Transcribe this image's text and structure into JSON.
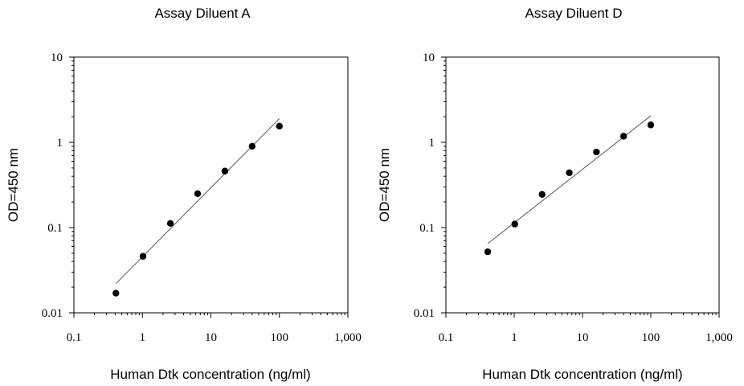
{
  "chart_data": [
    {
      "type": "scatter",
      "title": "Assay Diluent A",
      "xlabel": "Human Dtk concentration (ng/ml)",
      "ylabel": "OD=450 nm",
      "xscale": "log",
      "yscale": "log",
      "xlim": [
        0.1,
        1000
      ],
      "ylim": [
        0.01,
        10
      ],
      "xticks": [
        0.1,
        1,
        10,
        100,
        1000
      ],
      "xtick_labels": [
        "0.1",
        "1",
        "10",
        "100",
        "1,000"
      ],
      "yticks": [
        0.01,
        0.1,
        1,
        10
      ],
      "ytick_labels": [
        "0.01",
        "0.1",
        "1",
        "10"
      ],
      "grid": false,
      "points": [
        {
          "x": 0.41,
          "y": 0.017
        },
        {
          "x": 1.02,
          "y": 0.046
        },
        {
          "x": 2.56,
          "y": 0.112
        },
        {
          "x": 6.4,
          "y": 0.25
        },
        {
          "x": 16,
          "y": 0.46
        },
        {
          "x": 40,
          "y": 0.9
        },
        {
          "x": 100,
          "y": 1.55
        }
      ],
      "fit_line": {
        "x": [
          0.41,
          100
        ],
        "y": [
          0.022,
          1.9
        ]
      }
    },
    {
      "type": "scatter",
      "title": "Assay Diluent D",
      "xlabel": "Human Dtk concentration (ng/ml)",
      "ylabel": "OD=450 nm",
      "xscale": "log",
      "yscale": "log",
      "xlim": [
        0.1,
        1000
      ],
      "ylim": [
        0.01,
        10
      ],
      "xticks": [
        0.1,
        1,
        10,
        100,
        1000
      ],
      "xtick_labels": [
        "0.1",
        "1",
        "10",
        "100",
        "1,000"
      ],
      "yticks": [
        0.01,
        0.1,
        1,
        10
      ],
      "ytick_labels": [
        "0.01",
        "0.1",
        "1",
        "10"
      ],
      "grid": false,
      "points": [
        {
          "x": 0.41,
          "y": 0.052
        },
        {
          "x": 1.02,
          "y": 0.11
        },
        {
          "x": 2.56,
          "y": 0.245
        },
        {
          "x": 6.4,
          "y": 0.44
        },
        {
          "x": 16,
          "y": 0.77
        },
        {
          "x": 40,
          "y": 1.18
        },
        {
          "x": 100,
          "y": 1.6
        }
      ],
      "fit_line": {
        "x": [
          0.41,
          100
        ],
        "y": [
          0.065,
          2.05
        ]
      }
    }
  ]
}
